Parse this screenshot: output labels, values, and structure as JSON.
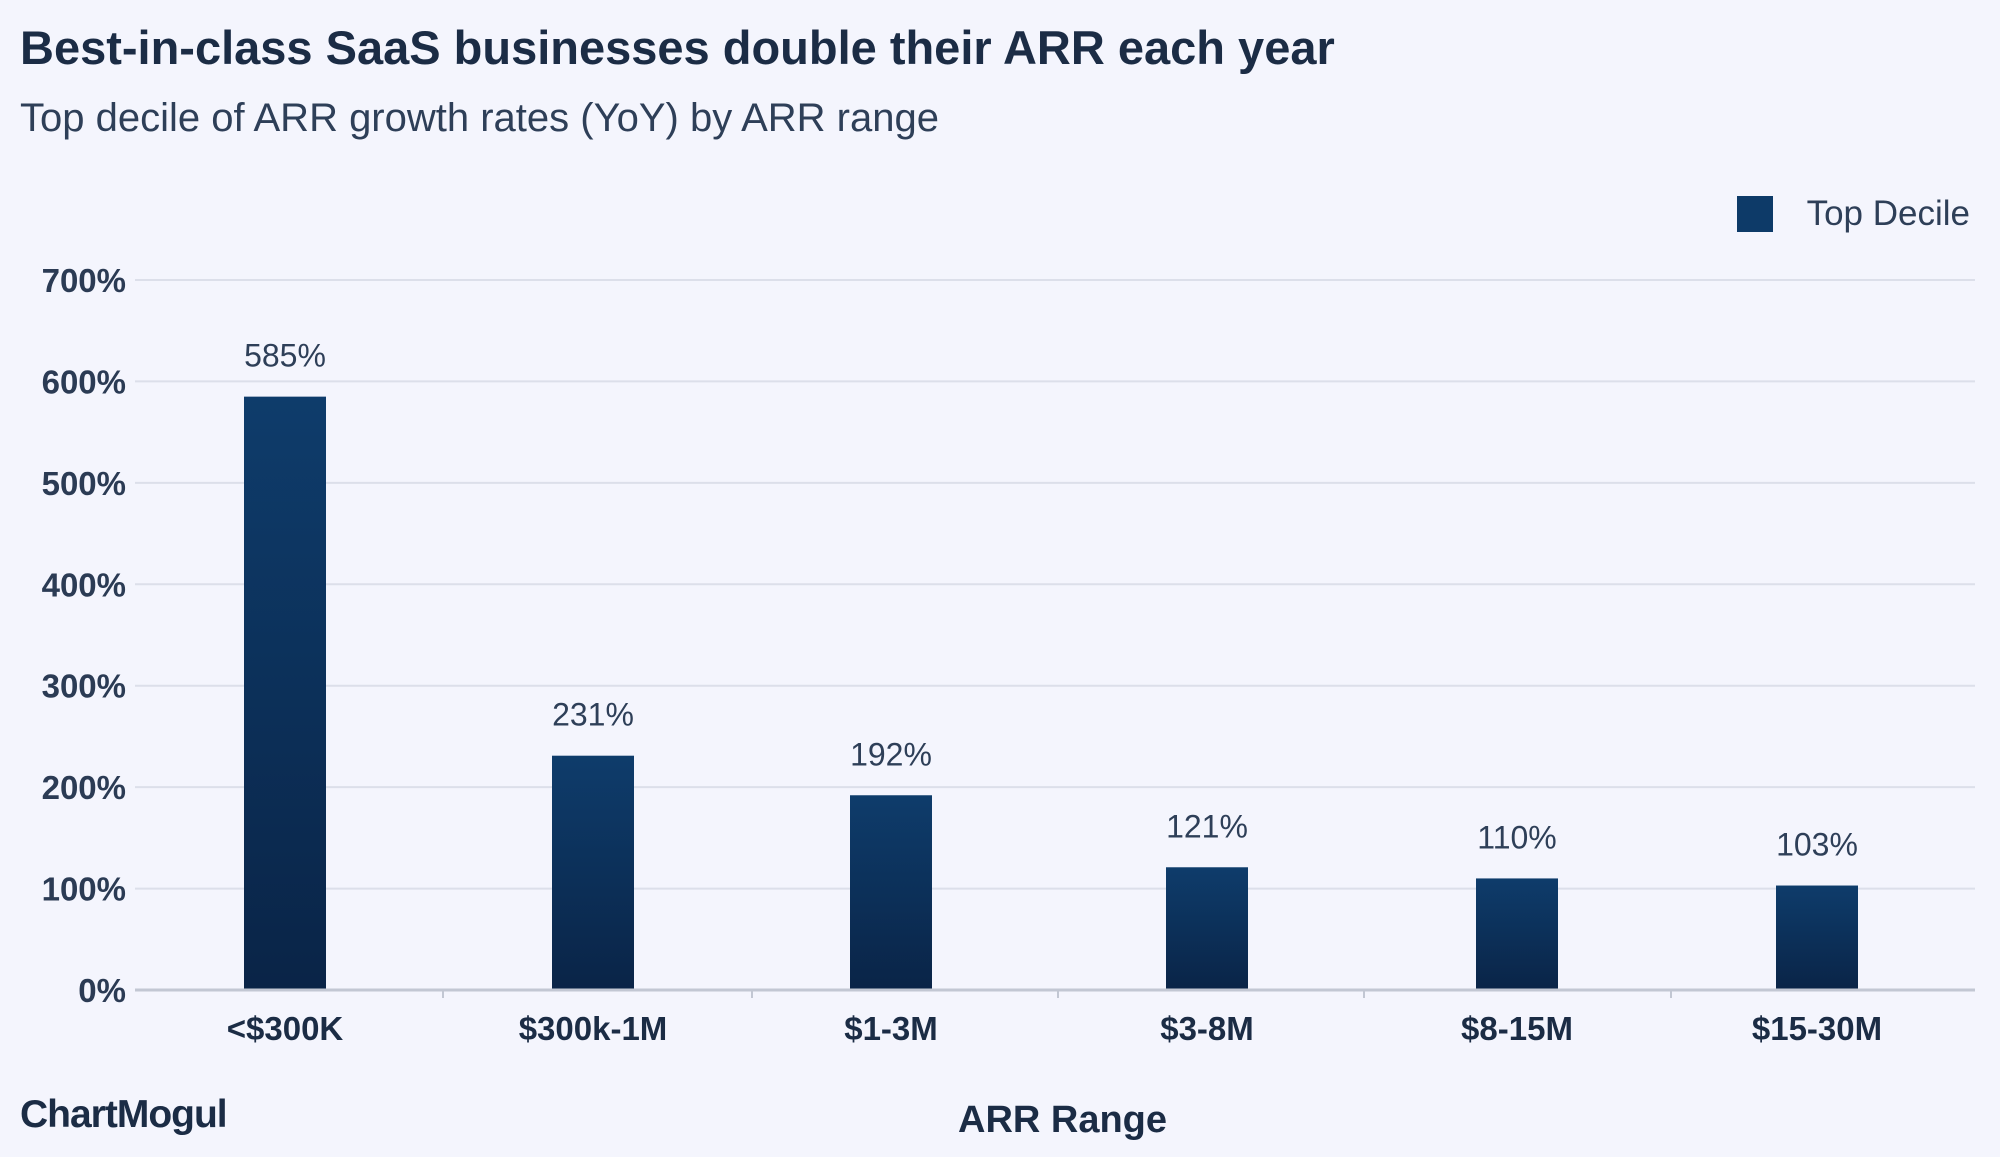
{
  "header": {
    "title": "Best-in-class SaaS businesses double their ARR each year",
    "subtitle": "Top decile of ARR growth rates (YoY) by ARR range"
  },
  "legend": {
    "label": "Top Decile"
  },
  "footer": {
    "brand": "ChartMogul"
  },
  "colors": {
    "bar_top": "#0e3c6b",
    "bar_bottom": "#0a2447",
    "grid": "#dcdfea",
    "axis": "#c2c7d3",
    "background": "#f4f5fd"
  },
  "chart_data": {
    "type": "bar",
    "title": "Best-in-class SaaS businesses double their ARR each year",
    "subtitle": "Top decile of ARR growth rates (YoY) by ARR range",
    "xlabel": "ARR Range",
    "ylabel": "",
    "categories": [
      "<$300K",
      "$300k-1M",
      "$1-3M",
      "$3-8M",
      "$8-15M",
      "$15-30M"
    ],
    "series": [
      {
        "name": "Top Decile",
        "values": [
          585,
          231,
          192,
          121,
          110,
          103
        ],
        "labels": [
          "585%",
          "231%",
          "192%",
          "121%",
          "110%",
          "103%"
        ]
      }
    ],
    "ylim": [
      0,
      700
    ],
    "yticks": [
      0,
      100,
      200,
      300,
      400,
      500,
      600,
      700
    ],
    "ytick_labels": [
      "0%",
      "100%",
      "200%",
      "300%",
      "400%",
      "500%",
      "600%",
      "700%"
    ],
    "grid": true,
    "legend_position": "top-right"
  }
}
